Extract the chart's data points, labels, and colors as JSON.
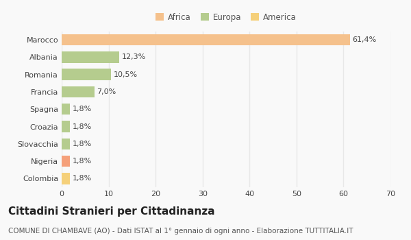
{
  "categories": [
    "Marocco",
    "Albania",
    "Romania",
    "Francia",
    "Spagna",
    "Croazia",
    "Slovacchia",
    "Nigeria",
    "Colombia"
  ],
  "values": [
    61.4,
    12.3,
    10.5,
    7.0,
    1.8,
    1.8,
    1.8,
    1.8,
    1.8
  ],
  "labels": [
    "61,4%",
    "12,3%",
    "10,5%",
    "7,0%",
    "1,8%",
    "1,8%",
    "1,8%",
    "1,8%",
    "1,8%"
  ],
  "colors": [
    "#F5C18C",
    "#B5CC8E",
    "#B5CC8E",
    "#B5CC8E",
    "#B5CC8E",
    "#B5CC8E",
    "#B5CC8E",
    "#F5A07A",
    "#F5D07A"
  ],
  "legend": [
    {
      "label": "Africa",
      "color": "#F5C18C"
    },
    {
      "label": "Europa",
      "color": "#B5CC8E"
    },
    {
      "label": "America",
      "color": "#F5D07A"
    }
  ],
  "xlim": [
    0,
    70
  ],
  "xticks": [
    0,
    10,
    20,
    30,
    40,
    50,
    60,
    70
  ],
  "title": "Cittadini Stranieri per Cittadinanza",
  "subtitle": "COMUNE DI CHAMBAVE (AO) - Dati ISTAT al 1° gennaio di ogni anno - Elaborazione TUTTITALIA.IT",
  "bg_color": "#f9f9f9",
  "grid_color": "#e8e8e8",
  "title_fontsize": 11,
  "subtitle_fontsize": 7.5,
  "tick_fontsize": 8,
  "label_fontsize": 8,
  "legend_fontsize": 8.5
}
